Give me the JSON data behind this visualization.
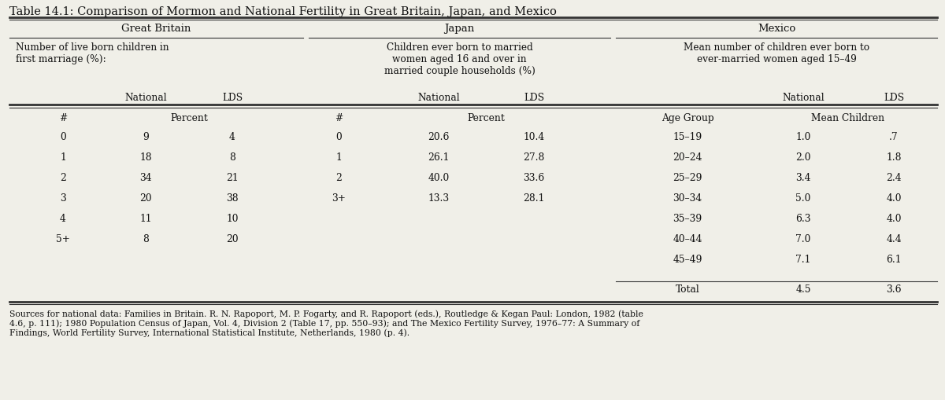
{
  "title": "Table 14.1: Comparison of Mormon and National Fertility in Great Britain, Japan, and Mexico",
  "bg_color": "#f0efe8",
  "text_color": "#1a1a1a",
  "section_headers": [
    "Great Britain",
    "Japan",
    "Mexico"
  ],
  "gb_subtitle": "Number of live born children in\nfirst marriage (%):",
  "japan_subtitle": "Children ever born to married\nwomen aged 16 and over in\nmarried couple households (%)",
  "mexico_subtitle": "Mean number of children ever born to\never-married women aged 15–49",
  "col_headers_gb": [
    "National",
    "LDS"
  ],
  "col_headers_japan": [
    "National",
    "LDS"
  ],
  "col_headers_mexico": [
    "National",
    "LDS"
  ],
  "subheader_gb": [
    "#",
    "Percent"
  ],
  "subheader_japan": [
    "#",
    "Percent"
  ],
  "subheader_mexico": [
    "Age Group",
    "Mean Children"
  ],
  "gb_data": [
    [
      "0",
      "9",
      "4"
    ],
    [
      "1",
      "18",
      "8"
    ],
    [
      "2",
      "34",
      "21"
    ],
    [
      "3",
      "20",
      "38"
    ],
    [
      "4",
      "11",
      "10"
    ],
    [
      "5+",
      "8",
      "20"
    ]
  ],
  "japan_data": [
    [
      "0",
      "20.6",
      "10.4"
    ],
    [
      "1",
      "26.1",
      "27.8"
    ],
    [
      "2",
      "40.0",
      "33.6"
    ],
    [
      "3+",
      "13.3",
      "28.1"
    ]
  ],
  "mexico_data": [
    [
      "15–19",
      "1.0",
      ".7"
    ],
    [
      "20–24",
      "2.0",
      "1.8"
    ],
    [
      "25–29",
      "3.4",
      "2.4"
    ],
    [
      "30–34",
      "5.0",
      "4.0"
    ],
    [
      "35–39",
      "6.3",
      "4.0"
    ],
    [
      "40–44",
      "7.0",
      "4.4"
    ],
    [
      "45–49",
      "7.1",
      "6.1"
    ]
  ],
  "mexico_total": [
    "Total",
    "4.5",
    "3.6"
  ],
  "footnote": "Sources for national data: Families in Britain. R. N. Rapoport, M. P. Fogarty, and R. Rapoport (eds.), Routledge & Kegan Paul: London, 1982 (table\n4.6, p. 111); 1980 Population Census of Japan, Vol. 4, Division 2 (Table 17, pp. 550–93); and The Mexico Fertility Survey, 1976–77: A Summary of\nFindings, World Fertility Survey, International Statistical Institute, Netherlands, 1980 (p. 4)."
}
